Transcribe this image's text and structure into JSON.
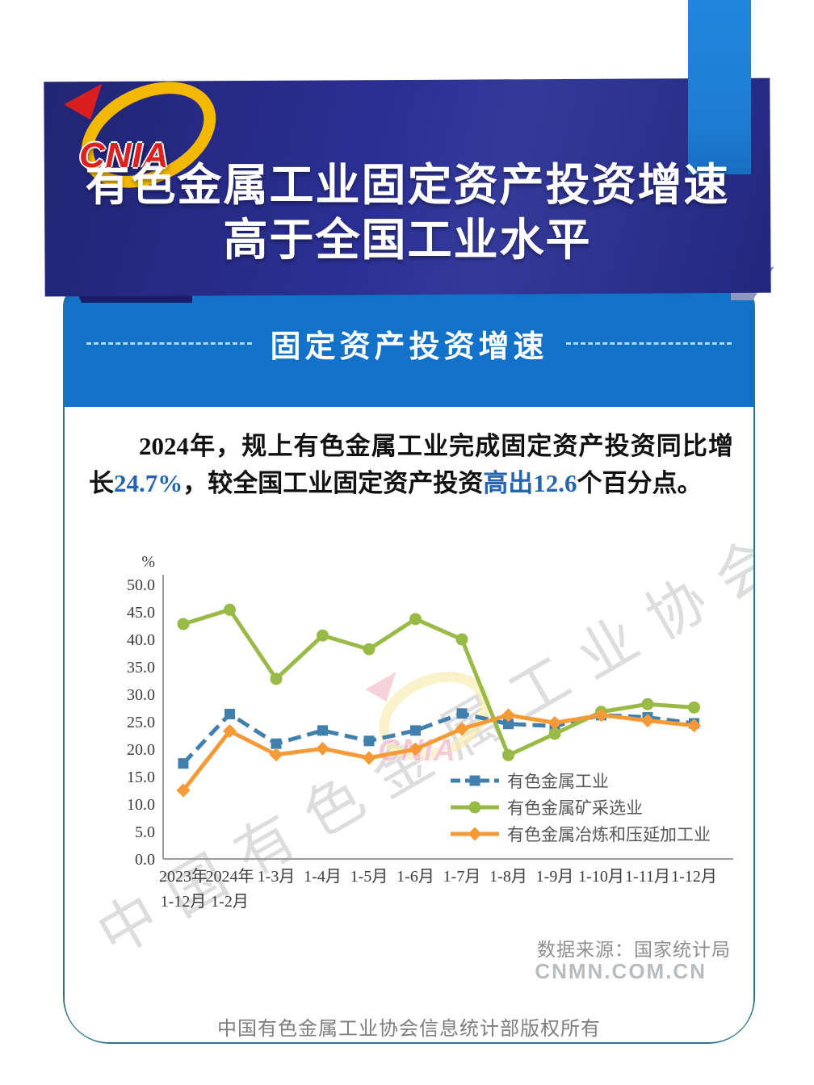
{
  "header": {
    "logo_text": "CNIA",
    "title_line1": "有色金属工业固定资产投资增速",
    "title_line2": "高于全国工业水平"
  },
  "section": {
    "title": "固定资产投资增速"
  },
  "paragraph": {
    "seg1": "2024年，规上有色金属工业完成固定资产投资同比增长",
    "seg2": "24.7%",
    "seg3": "，较全国工业固定资产投资",
    "seg4": "高出12.6",
    "seg5": "个百分点。"
  },
  "chart_data": {
    "type": "line",
    "title": "",
    "xlabel": "",
    "ylabel": "%",
    "ylim": [
      0,
      50
    ],
    "yticks": [
      0,
      5,
      10,
      15,
      20,
      25,
      30,
      35,
      40,
      45,
      50
    ],
    "grid": false,
    "legend_position": "inside-bottom-right",
    "categories": [
      "2023年\n1-12月",
      "2024年\n1-2月",
      "1-3月",
      "1-4月",
      "1-5月",
      "1-6月",
      "1-7月",
      "1-8月",
      "1-9月",
      "1-10月",
      "1-11月",
      "1-12月"
    ],
    "series": [
      {
        "name": "有色金属工业",
        "color": "#4180ad",
        "style": "dashed",
        "marker": "square",
        "values": [
          17.4,
          26.4,
          21.0,
          23.4,
          21.5,
          23.4,
          26.5,
          24.6,
          24.2,
          26.2,
          25.8,
          24.7
        ]
      },
      {
        "name": "有色金属矿采选业",
        "color": "#9aba47",
        "style": "solid",
        "marker": "circle",
        "values": [
          42.8,
          45.4,
          32.8,
          40.7,
          38.2,
          43.7,
          40.0,
          18.9,
          22.8,
          26.8,
          28.2,
          27.6
        ]
      },
      {
        "name": "有色金属冶炼和压延加工业",
        "color": "#f59a36",
        "style": "solid",
        "marker": "diamond",
        "values": [
          12.5,
          23.3,
          19.0,
          20.1,
          18.4,
          20.0,
          23.7,
          26.2,
          24.8,
          26.2,
          25.2,
          24.3
        ]
      }
    ]
  },
  "footer": {
    "data_source": "数据来源：国家统计局",
    "website": "CNMN.COM.CN",
    "copyright": "中国有色金属工业协会信息统计部版权所有"
  },
  "watermark": {
    "diagonal_text": "中国有色金属工业协会",
    "center_logo_text": "CNIA"
  },
  "colors": {
    "banner_navy": "#2b2f93",
    "ribbon_blue": "#1d7cd2",
    "panel_blue": "#1271c9",
    "panel_outline_teal": "#2b7386",
    "highlight_blue": "#2565b0"
  }
}
